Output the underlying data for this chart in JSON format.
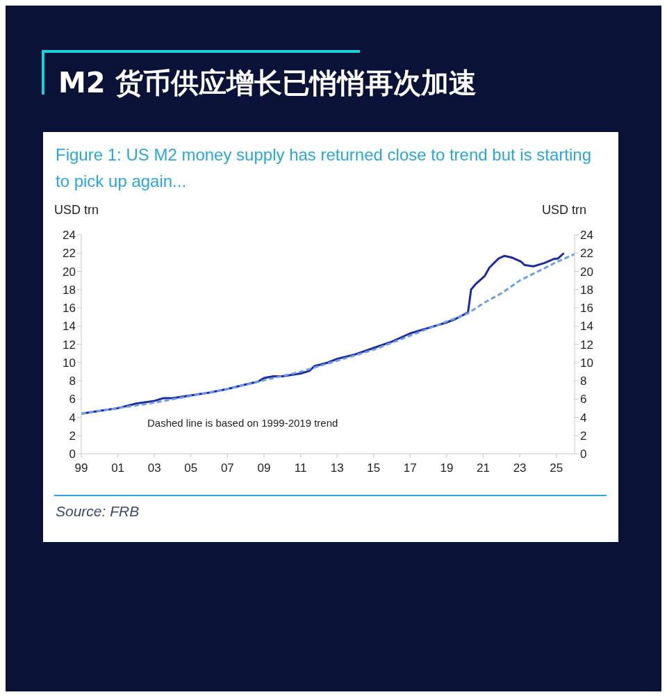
{
  "chart_data": {
    "type": "line",
    "title": "M2 货币供应增长已悄悄再次加速",
    "subtitle": "Figure 1: US M2 money supply has returned close to trend but is starting to pick up again...",
    "ylabel": "USD trn",
    "y2label": "USD trn",
    "annotations": [
      "Dashed line is based on 1999-2019 trend",
      "Source: FRB"
    ],
    "series": [
      {
        "color": "#1b2b9e",
        "line_style": "solid",
        "x": [
          "1999-01",
          "2000-01",
          "2001-01",
          "2002-01",
          "2003-01",
          "2003-07",
          "2004-01",
          "2005-01",
          "2006-01",
          "2007-01",
          "2008-01",
          "2008-09",
          "2009-01",
          "2009-07",
          "2010-01",
          "2011-01",
          "2011-07",
          "2011-10",
          "2012-07",
          "2013-01",
          "2014-01",
          "2015-01",
          "2016-01",
          "2017-01",
          "2018-01",
          "2019-01",
          "2019-07",
          "2020-03",
          "2020-05",
          "2020-08",
          "2021-02",
          "2021-05",
          "2021-11",
          "2022-03",
          "2022-08",
          "2023-02",
          "2023-04",
          "2023-10",
          "2024-05",
          "2024-12",
          "2025-02",
          "2025-06"
        ],
        "values": [
          4.4,
          4.7,
          5.0,
          5.5,
          5.8,
          6.1,
          6.1,
          6.4,
          6.7,
          7.1,
          7.6,
          7.9,
          8.3,
          8.5,
          8.5,
          8.8,
          9.1,
          9.6,
          10.0,
          10.4,
          10.9,
          11.6,
          12.3,
          13.2,
          13.8,
          14.4,
          14.8,
          15.5,
          18.0,
          18.6,
          19.5,
          20.4,
          21.4,
          21.7,
          21.5,
          21.05,
          20.7,
          20.55,
          20.9,
          21.4,
          21.4,
          22.0
        ]
      },
      {
        "color": "#6d9eeb",
        "line_style": "dashed",
        "x": [
          "1999-01",
          "2003-01",
          "2007-01",
          "2011-01",
          "2015-01",
          "2019-01",
          "2020-03",
          "2021-01",
          "2022-01",
          "2023-01",
          "2024-01",
          "2025-01",
          "2026-01"
        ],
        "values": [
          4.4,
          5.6,
          7.1,
          9.0,
          11.4,
          14.5,
          15.4,
          16.5,
          17.6,
          19.0,
          20.0,
          21.0,
          21.9
        ]
      }
    ],
    "xlim": [
      "1999-01",
      "2026-01"
    ],
    "xticks": [
      {
        "value": "1999",
        "label": "99"
      },
      {
        "value": "2001",
        "label": "01"
      },
      {
        "value": "2003",
        "label": "03"
      },
      {
        "value": "2005",
        "label": "05"
      },
      {
        "value": "2007",
        "label": "07"
      },
      {
        "value": "2009",
        "label": "09"
      },
      {
        "value": "2011",
        "label": "11"
      },
      {
        "value": "2013",
        "label": "13"
      },
      {
        "value": "2015",
        "label": "15"
      },
      {
        "value": "2017",
        "label": "17"
      },
      {
        "value": "2019",
        "label": "19"
      },
      {
        "value": "2021",
        "label": "21"
      },
      {
        "value": "2023",
        "label": "23"
      },
      {
        "value": "2025",
        "label": "25"
      }
    ],
    "ylim": [
      0,
      24
    ],
    "yticks": [
      0,
      2,
      4,
      6,
      8,
      10,
      12,
      14,
      16,
      18,
      20,
      22,
      24
    ],
    "y2lim": [
      0,
      24
    ],
    "y2ticks": [
      0,
      2,
      4,
      6,
      8,
      10,
      12,
      14,
      16,
      18,
      20,
      22,
      24
    ],
    "grid": false,
    "legend": false,
    "marker": "none"
  }
}
